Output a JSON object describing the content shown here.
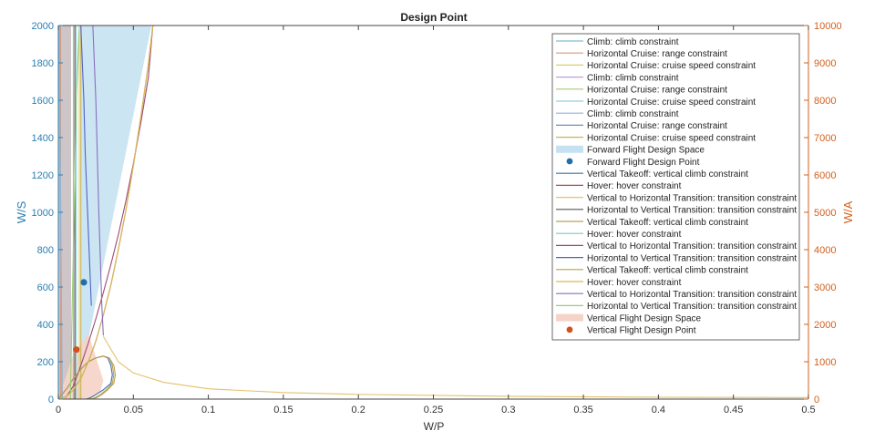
{
  "chart_data": {
    "type": "line",
    "title": "Design Point",
    "xlabel": "W/P",
    "ylabel_left": "W/S",
    "ylabel_right": "W/A",
    "xlim": [
      0,
      0.5
    ],
    "ylim_left": [
      0,
      2000
    ],
    "ylim_right": [
      0,
      10000
    ],
    "x_ticks": [
      "0",
      "0.05",
      "0.1",
      "0.15",
      "0.2",
      "0.25",
      "0.3",
      "0.35",
      "0.4",
      "0.45",
      "0.5"
    ],
    "y_ticks_left": [
      "0",
      "200",
      "400",
      "600",
      "800",
      "1000",
      "1200",
      "1400",
      "1600",
      "1800",
      "2000"
    ],
    "y_ticks_right": [
      "0",
      "1000",
      "2000",
      "3000",
      "4000",
      "5000",
      "6000",
      "7000",
      "8000",
      "9000",
      "10000"
    ],
    "left_axis_color": "#2a7fb0",
    "right_axis_color": "#d2601e",
    "grid": false,
    "legend_position": "top-right",
    "series": [
      {
        "name": "Climb: climb constraint",
        "axis": "left",
        "color": "#7fbfd0",
        "x": [
          0.0005,
          0.0008,
          0.0012,
          0.0016,
          0.002
        ],
        "y": [
          2000,
          1500,
          1000,
          500,
          0
        ]
      },
      {
        "name": "Horizontal Cruise: range constraint",
        "axis": "left",
        "color": "#d89a7a",
        "x": [
          0.0015,
          0.0015
        ],
        "y": [
          0,
          2000
        ]
      },
      {
        "name": "Horizontal Cruise: cruise speed constraint",
        "axis": "left",
        "color": "#d8cf6a",
        "x": [
          0.014,
          0.014
        ],
        "y": [
          0,
          2000
        ]
      },
      {
        "name": "Climb: climb constraint",
        "axis": "left",
        "color": "#b9a4d3",
        "x": [
          0.0006,
          0.001,
          0.0015,
          0.002,
          0.0025
        ],
        "y": [
          2000,
          1500,
          1000,
          500,
          0
        ]
      },
      {
        "name": "Horizontal Cruise: range constraint",
        "axis": "left",
        "color": "#a9c97a",
        "x": [
          0.01,
          0.01
        ],
        "y": [
          0,
          2000
        ]
      },
      {
        "name": "Horizontal Cruise: cruise speed constraint",
        "axis": "left",
        "color": "#8fd0e0",
        "x": [
          0.012,
          0.012
        ],
        "y": [
          0,
          2000
        ]
      },
      {
        "name": "Climb: climb constraint",
        "axis": "left",
        "color": "#93b4cf",
        "x": [
          0.0007,
          0.0011,
          0.0016,
          0.0021,
          0.0027
        ],
        "y": [
          2000,
          1500,
          1000,
          500,
          0
        ]
      },
      {
        "name": "Horizontal Cruise: range constraint",
        "axis": "left",
        "color": "#6d8fb3",
        "x": [
          0.011,
          0.011
        ],
        "y": [
          0,
          2000
        ]
      },
      {
        "name": "Horizontal Cruise: cruise speed constraint",
        "axis": "left",
        "color": "#c9b35a",
        "x": [
          0.015,
          0.015
        ],
        "y": [
          0,
          2000
        ]
      },
      {
        "name": "Vertical Takeoff: vertical climb constraint",
        "axis": "right",
        "color": "#3e6fae",
        "x": [
          0.0,
          0.002,
          0.006,
          0.01,
          0.015,
          0.02,
          0.025,
          0.03,
          0.033,
          0.035,
          0.036,
          0.035,
          0.03,
          0.025,
          0.022,
          0.02,
          0.019,
          0.018
        ],
        "y": [
          0,
          100,
          300,
          550,
          800,
          1000,
          1100,
          1150,
          1100,
          900,
          650,
          420,
          250,
          120,
          50,
          15,
          5,
          0
        ]
      },
      {
        "name": "Hover: hover constraint",
        "axis": "right",
        "color": "#a84c4c",
        "x": [
          0.0,
          0.005,
          0.01,
          0.015,
          0.02,
          0.025,
          0.03,
          0.035,
          0.04,
          0.045,
          0.05,
          0.055,
          0.06,
          0.063
        ],
        "y": [
          0,
          60,
          240,
          550,
          1000,
          1550,
          2250,
          3050,
          4000,
          5050,
          6250,
          7550,
          8950,
          10000
        ]
      },
      {
        "name": "Vertical to Horizontal Transition: transition constraint",
        "axis": "left",
        "color": "#e3c26a",
        "x": [
          0.03,
          0.04,
          0.05,
          0.07,
          0.1,
          0.15,
          0.2,
          0.3,
          0.4,
          0.5
        ],
        "y": [
          335,
          200,
          140,
          90,
          55,
          35,
          25,
          15,
          10,
          8
        ]
      },
      {
        "name": "Horizontal to Vertical Transition: transition constraint",
        "axis": "left",
        "color": "#555555",
        "x": [
          0.011,
          0.011
        ],
        "y": [
          0,
          2000
        ]
      },
      {
        "name": "Vertical Takeoff: vertical climb constraint",
        "axis": "right",
        "color": "#b3a05a",
        "x": [
          0.0,
          0.002,
          0.006,
          0.01,
          0.015,
          0.02,
          0.025,
          0.03,
          0.034,
          0.036,
          0.037,
          0.036,
          0.032,
          0.028,
          0.025,
          0.023,
          0.021,
          0.02
        ],
        "y": [
          0,
          100,
          300,
          550,
          800,
          1000,
          1100,
          1150,
          1100,
          900,
          650,
          420,
          250,
          120,
          50,
          15,
          5,
          0
        ]
      },
      {
        "name": "Hover: hover constraint",
        "axis": "right",
        "color": "#7fc6c6",
        "x": [
          0.0,
          0.005,
          0.01,
          0.015,
          0.02,
          0.025,
          0.03,
          0.035,
          0.04,
          0.045,
          0.05,
          0.055,
          0.06,
          0.063
        ],
        "y": [
          0,
          60,
          240,
          550,
          1000,
          1550,
          2250,
          3050,
          4000,
          5050,
          6250,
          7550,
          8950,
          10000
        ]
      },
      {
        "name": "Vertical to Horizontal Transition: transition constraint",
        "axis": "right",
        "color": "#a04a72",
        "x": [
          0.005,
          0.01,
          0.015,
          0.02,
          0.025,
          0.03,
          0.035,
          0.04,
          0.045,
          0.05,
          0.055,
          0.06,
          0.063
        ],
        "y": [
          40,
          350,
          900,
          1500,
          2150,
          2850,
          3600,
          4400,
          5300,
          6300,
          7400,
          8600,
          10000
        ]
      },
      {
        "name": "Horizontal to Vertical Transition: transition constraint",
        "axis": "left",
        "color": "#5063c8",
        "x": [
          0.022,
          0.021,
          0.02,
          0.019,
          0.018,
          0.017,
          0.016,
          0.015
        ],
        "y": [
          500,
          700,
          900,
          1100,
          1300,
          1600,
          1800,
          2000
        ]
      },
      {
        "name": "Vertical Takeoff: vertical climb constraint",
        "axis": "right",
        "color": "#b8a052",
        "x": [
          0.0,
          0.002,
          0.006,
          0.01,
          0.015,
          0.02,
          0.025,
          0.03,
          0.034,
          0.037,
          0.038,
          0.037,
          0.033,
          0.029,
          0.026,
          0.024,
          0.022,
          0.021
        ],
        "y": [
          0,
          100,
          300,
          550,
          800,
          1000,
          1100,
          1150,
          1100,
          900,
          650,
          420,
          250,
          120,
          50,
          15,
          5,
          0
        ]
      },
      {
        "name": "Hover: hover constraint",
        "axis": "right",
        "color": "#e1b84d",
        "x": [
          0.0,
          0.005,
          0.01,
          0.015,
          0.02,
          0.025,
          0.03,
          0.035,
          0.04,
          0.045,
          0.05,
          0.055,
          0.06,
          0.063
        ],
        "y": [
          0,
          60,
          240,
          550,
          1000,
          1550,
          2250,
          3050,
          4000,
          5050,
          6250,
          7550,
          8950,
          10000
        ]
      },
      {
        "name": "Vertical to Horizontal Transition: transition constraint",
        "axis": "left",
        "color": "#8a6fbf",
        "x": [
          0.03,
          0.029,
          0.028,
          0.027,
          0.026,
          0.025,
          0.024,
          0.023
        ],
        "y": [
          340,
          500,
          750,
          1000,
          1300,
          1600,
          1800,
          2000
        ]
      },
      {
        "name": "Horizontal to Vertical Transition: transition constraint",
        "axis": "left",
        "color": "#9ccc7a",
        "x": [
          0.008,
          0.009,
          0.01,
          0.011,
          0.012,
          0.013,
          0.014
        ],
        "y": [
          0,
          400,
          800,
          1200,
          1600,
          1800,
          2000
        ]
      }
    ],
    "regions": [
      {
        "name": "Forward Flight Design Space",
        "axis": "left",
        "color": "#c6e2f2",
        "polygon_x": [
          0.011,
          0.062,
          0.015,
          0.015
        ],
        "polygon_y": [
          2000,
          2000,
          120,
          2000
        ]
      },
      {
        "name": "Vertical Flight Design Space",
        "axis": "left",
        "color": "#f6d3c7",
        "polygon_x": [
          0.0,
          0.01,
          0.02,
          0.03,
          0.028,
          0.023,
          0.02
        ],
        "polygon_y": [
          0,
          240,
          350,
          100,
          40,
          10,
          0
        ]
      }
    ],
    "gray_band": {
      "name": "",
      "axis": "left",
      "color": "#c8bfc1",
      "x0": 0.0,
      "x1": 0.0085,
      "y0": 0,
      "y1": 2000
    },
    "points": [
      {
        "name": "Forward Flight Design Point",
        "axis": "left",
        "color": "#1f6fb0",
        "x": 0.017,
        "y": 625
      },
      {
        "name": "Vertical Flight Design Point",
        "axis": "left",
        "color": "#d2501e",
        "x": 0.012,
        "y": 265
      }
    ],
    "legend": [
      {
        "label": "Climb: climb constraint",
        "kind": "line",
        "color": "#7fbfd0"
      },
      {
        "label": "Horizontal Cruise: range constraint",
        "kind": "line",
        "color": "#d89a7a"
      },
      {
        "label": "Horizontal Cruise: cruise speed constraint",
        "kind": "line",
        "color": "#d8cf6a"
      },
      {
        "label": "Climb: climb constraint",
        "kind": "line",
        "color": "#b9a4d3"
      },
      {
        "label": "Horizontal Cruise: range constraint",
        "kind": "line",
        "color": "#a9c97a"
      },
      {
        "label": "Horizontal Cruise: cruise speed constraint",
        "kind": "line",
        "color": "#8fd0e0"
      },
      {
        "label": "Climb: climb constraint",
        "kind": "line",
        "color": "#93b4cf"
      },
      {
        "label": "Horizontal Cruise: range constraint",
        "kind": "line",
        "color": "#6d8fb3"
      },
      {
        "label": "Horizontal Cruise: cruise speed constraint",
        "kind": "line",
        "color": "#c9b35a"
      },
      {
        "label": "Forward Flight Design Space",
        "kind": "patch",
        "color": "#c6e2f2"
      },
      {
        "label": "Forward Flight Design Point",
        "kind": "marker",
        "color": "#1f6fb0"
      },
      {
        "label": "Vertical Takeoff: vertical climb constraint",
        "kind": "line",
        "color": "#3e6fae"
      },
      {
        "label": "Hover: hover constraint",
        "kind": "line",
        "color": "#a84c4c"
      },
      {
        "label": "Vertical to Horizontal Transition: transition constraint",
        "kind": "line",
        "color": "#e3c26a"
      },
      {
        "label": "Horizontal to Vertical Transition: transition constraint",
        "kind": "line",
        "color": "#555555"
      },
      {
        "label": "Vertical Takeoff: vertical climb constraint",
        "kind": "line",
        "color": "#b3a05a"
      },
      {
        "label": "Hover: hover constraint",
        "kind": "line",
        "color": "#7fc6c6"
      },
      {
        "label": "Vertical to Horizontal Transition: transition constraint",
        "kind": "line",
        "color": "#a04a72"
      },
      {
        "label": "Horizontal to Vertical Transition: transition constraint",
        "kind": "line",
        "color": "#5063c8"
      },
      {
        "label": "Vertical Takeoff: vertical climb constraint",
        "kind": "line",
        "color": "#b8a052"
      },
      {
        "label": "Hover: hover constraint",
        "kind": "line",
        "color": "#e1b84d"
      },
      {
        "label": "Vertical to Horizontal Transition: transition constraint",
        "kind": "line",
        "color": "#8a6fbf"
      },
      {
        "label": "Horizontal to Vertical Transition: transition constraint",
        "kind": "line",
        "color": "#9ccc7a"
      },
      {
        "label": "Vertical Flight Design Space",
        "kind": "patch",
        "color": "#f6d3c7"
      },
      {
        "label": "Vertical Flight Design Point",
        "kind": "marker",
        "color": "#d2501e"
      }
    ]
  }
}
